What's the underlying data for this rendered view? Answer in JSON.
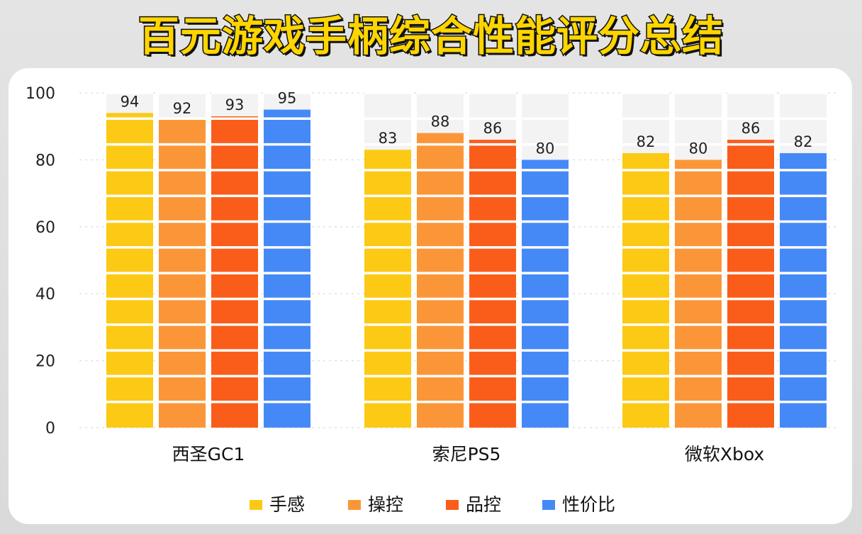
{
  "title": "百元游戏手柄综合性能评分总结",
  "chart_data": {
    "type": "bar",
    "categories": [
      "西圣GC1",
      "索尼PS5",
      "微软Xbox"
    ],
    "series": [
      {
        "name": "手感",
        "color": "#fcc915",
        "values": [
          94,
          83,
          82
        ]
      },
      {
        "name": "操控",
        "color": "#fb9638",
        "values": [
          92,
          88,
          80
        ]
      },
      {
        "name": "品控",
        "color": "#fa5d1a",
        "values": [
          93,
          86,
          86
        ]
      },
      {
        "name": "性价比",
        "color": "#4589f7",
        "values": [
          95,
          80,
          82
        ]
      }
    ],
    "ylim": [
      0,
      100
    ],
    "yticks": [
      0,
      20,
      40,
      60,
      80,
      100
    ],
    "grid": true,
    "legend": "bottom",
    "bar_background": "#f3f3f3"
  }
}
